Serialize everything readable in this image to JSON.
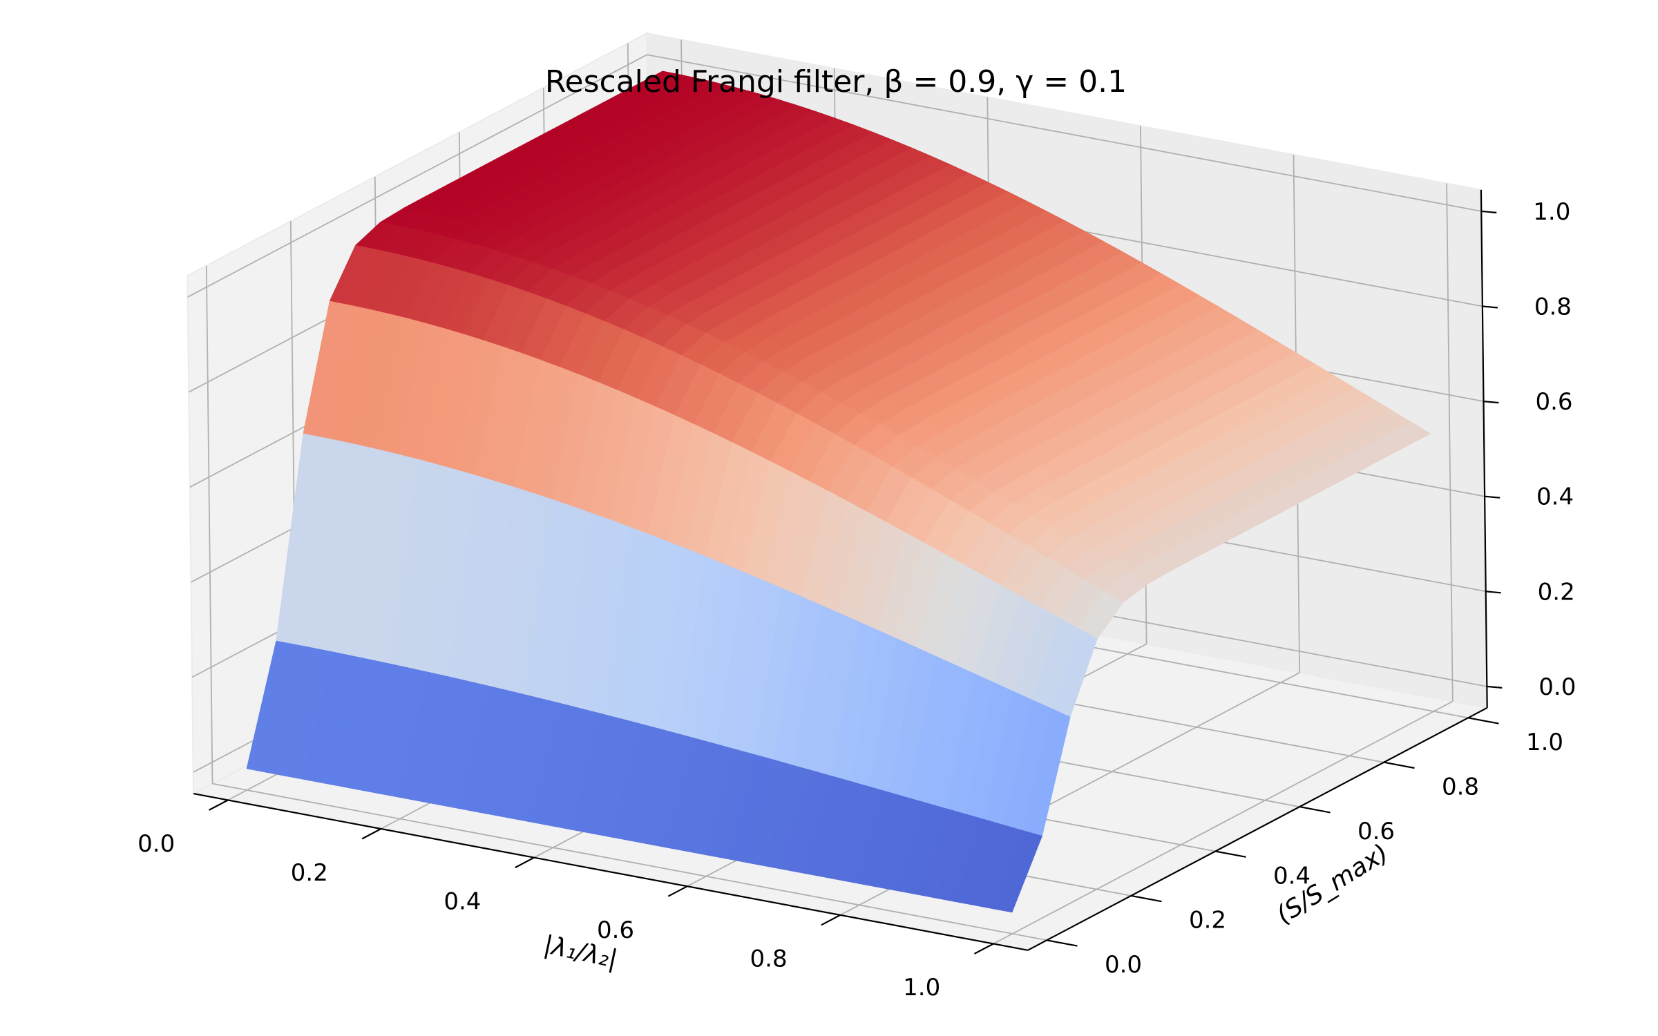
{
  "chart_data": {
    "type": "surface",
    "title": "Rescaled Frangi filter, β = 0.9, γ = 0.1",
    "xlabel": "|λ₁/λ₂|",
    "ylabel": "(S/S_max)",
    "xlim": [
      0,
      1
    ],
    "ylim": [
      0,
      1
    ],
    "zlim": [
      0,
      1
    ],
    "x_ticks": [
      "0.0",
      "0.2",
      "0.4",
      "0.6",
      "0.8",
      "1.0"
    ],
    "y_ticks": [
      "0.0",
      "0.2",
      "0.4",
      "0.6",
      "0.8",
      "1.0"
    ],
    "z_ticks": [
      "0.0",
      "0.2",
      "0.4",
      "0.6",
      "0.8",
      "1.0"
    ],
    "beta": 0.9,
    "gamma": 0.1,
    "colormap": "coolwarm",
    "grid": true
  }
}
